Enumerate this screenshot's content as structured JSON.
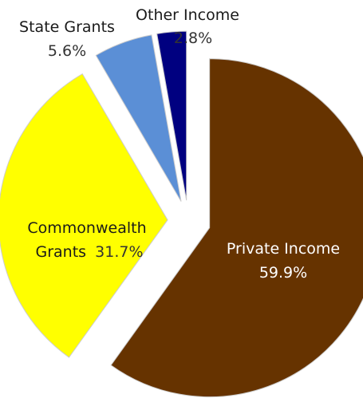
{
  "chart_data": {
    "type": "pie",
    "title": "",
    "series": [
      {
        "labels": [
          "Private Income",
          "Commonwealth Grants",
          "State Grants",
          "Other Income"
        ],
        "values": [
          59.9,
          31.7,
          5.6,
          2.8
        ],
        "display_values": [
          "59.9%",
          "31.7%",
          "5.6%",
          "2.8%"
        ],
        "colors": [
          "#663300",
          "#ffff00",
          "#5b8fd6",
          "#000080"
        ]
      }
    ],
    "exploded": true,
    "legend": "none"
  },
  "labels": {
    "private": {
      "name": "Private Income",
      "pct": "59.9%"
    },
    "commonwealth": {
      "name_line1": "Commonwealth",
      "name_line2": "Grants",
      "pct": "31.7%"
    },
    "state": {
      "name": "State Grants",
      "pct": "5.6%"
    },
    "other": {
      "name": "Other Income",
      "pct": "2.8%"
    }
  }
}
